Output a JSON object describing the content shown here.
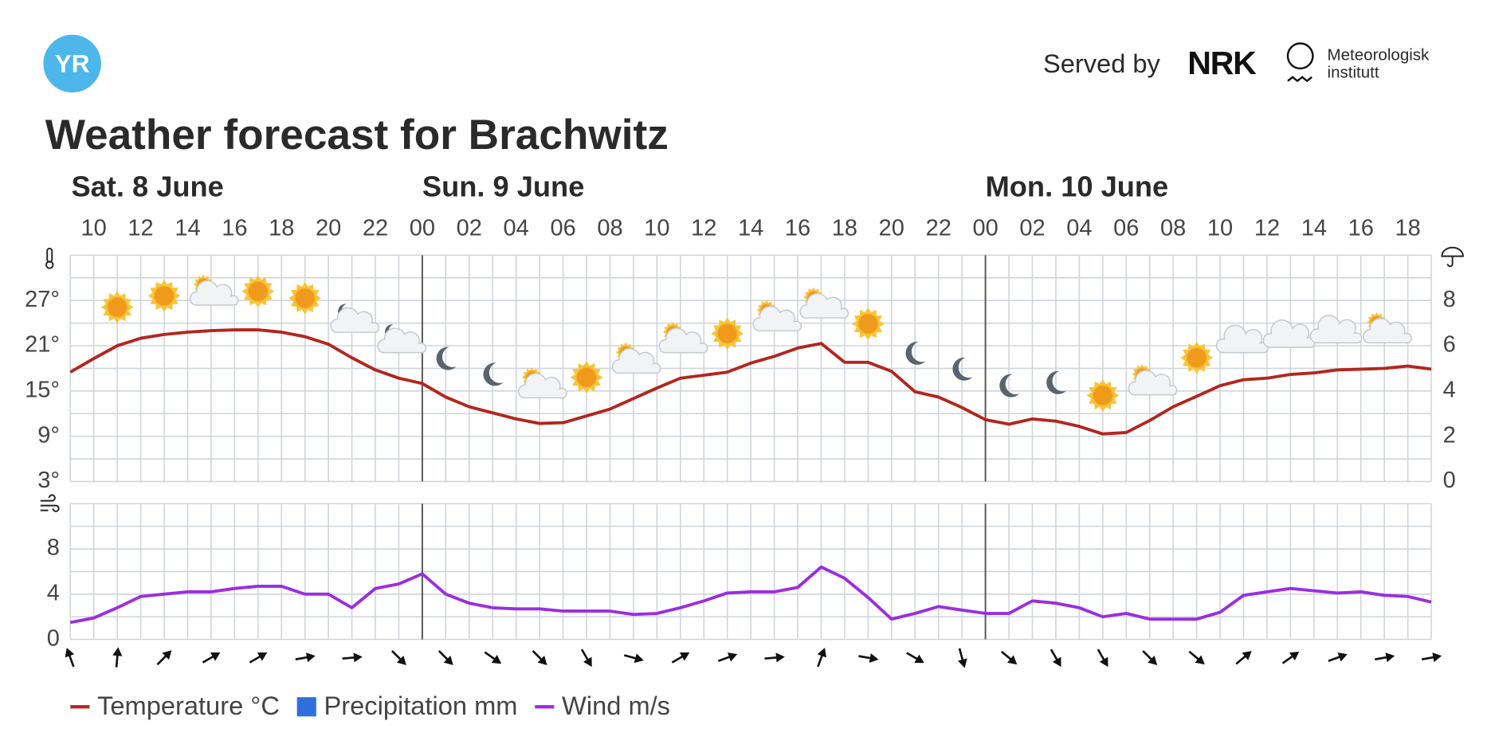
{
  "header": {
    "logo": "YR",
    "served_by": "Served by",
    "nrk": "NRK",
    "met": [
      "Meteorologisk",
      "institutt"
    ]
  },
  "chart_data": [
    {
      "type": "line",
      "title": "Weather forecast for Brachwitz",
      "days": [
        "Sat. 8 June",
        "Sun. 9 June",
        "Mon. 10 June"
      ],
      "categories": [
        null,
        "10",
        null,
        "12",
        null,
        "14",
        null,
        "16",
        null,
        "18",
        null,
        "20",
        null,
        "22",
        null,
        "00",
        null,
        "02",
        null,
        "04",
        null,
        "06",
        null,
        "08",
        null,
        "10",
        null,
        "12",
        null,
        "14",
        null,
        "16",
        null,
        "18",
        null,
        "20",
        null,
        "22",
        null,
        "00",
        null,
        "02",
        null,
        "04",
        null,
        "06",
        null,
        "08",
        null,
        "10",
        null,
        "12",
        null,
        "14",
        null,
        "16",
        null,
        "18",
        null
      ],
      "series": [
        {
          "name": "Temperature °C",
          "color": "#b3261e",
          "values": [
            17.5,
            19.3,
            21.0,
            22.0,
            22.5,
            22.8,
            23.0,
            23.1,
            23.1,
            22.8,
            22.2,
            21.2,
            19.4,
            17.8,
            16.7,
            16.0,
            14.2,
            12.9,
            12.1,
            11.3,
            10.7,
            10.8,
            11.7,
            12.6,
            14.0,
            15.4,
            16.7,
            17.1,
            17.5,
            18.7,
            19.6,
            20.7,
            21.3,
            18.8,
            18.8,
            17.6,
            14.9,
            14.2,
            12.8,
            11.2,
            10.6,
            11.3,
            11.0,
            10.3,
            9.3,
            9.5,
            11.1,
            12.9,
            14.3,
            15.7,
            16.5,
            16.7,
            17.2,
            17.4,
            17.8,
            17.9,
            18.0,
            18.3,
            17.9
          ]
        },
        {
          "name": "Precipitation mm",
          "color": "#2f6fdb",
          "axis": "y2",
          "values": [
            0,
            0,
            0,
            0,
            0,
            0,
            0,
            0,
            0,
            0,
            0,
            0,
            0,
            0,
            0,
            0,
            0,
            0,
            0,
            0,
            0,
            0,
            0,
            0,
            0,
            0,
            0,
            0,
            0,
            0,
            0,
            0,
            0,
            0,
            0,
            0,
            0,
            0,
            0,
            0,
            0,
            0,
            0,
            0,
            0,
            0,
            0,
            0,
            0,
            0,
            0,
            0,
            0,
            0,
            0,
            0,
            0,
            0,
            0
          ]
        }
      ],
      "symbols": [
        null,
        null,
        "sun",
        null,
        "sun",
        null,
        "sun-cloud",
        null,
        "sun",
        null,
        "sun",
        null,
        "moon-cloud",
        null,
        "moon-cloud",
        null,
        "moon",
        null,
        "moon",
        null,
        "sun-cloud",
        null,
        "sun",
        null,
        "sun-cloud",
        null,
        "sun-cloud",
        null,
        "sun",
        null,
        "sun-cloud",
        null,
        "sun-cloud",
        null,
        "sun",
        null,
        "moon",
        null,
        "moon",
        null,
        "moon",
        null,
        "moon",
        null,
        "sun",
        null,
        "sun-cloud",
        null,
        "sun",
        null,
        "cloud",
        null,
        "cloud",
        null,
        "cloud",
        null,
        "sun-cloud",
        null,
        null
      ],
      "ylim": [
        3,
        33
      ],
      "yticks": [
        {
          "value": 3,
          "label": "3°"
        },
        {
          "value": 9,
          "label": "9°"
        },
        {
          "value": 15,
          "label": "15°"
        },
        {
          "value": 21,
          "label": "21°"
        },
        {
          "value": 27,
          "label": "27°"
        }
      ],
      "ygrid": [
        3,
        6,
        9,
        12,
        15,
        18,
        21,
        24,
        27,
        30,
        33
      ],
      "y2lim": [
        0,
        10
      ],
      "y2ticks": [
        0,
        2,
        4,
        6,
        8
      ]
    },
    {
      "type": "line",
      "series": [
        {
          "name": "Wind m/s",
          "color": "#9b2de0",
          "values": [
            1.5,
            1.9,
            2.8,
            3.8,
            4.0,
            4.2,
            4.2,
            4.5,
            4.7,
            4.7,
            4.0,
            4.0,
            2.8,
            4.5,
            4.9,
            5.8,
            4.0,
            3.2,
            2.8,
            2.7,
            2.7,
            2.5,
            2.5,
            2.5,
            2.2,
            2.3,
            2.8,
            3.4,
            4.1,
            4.2,
            4.2,
            4.6,
            6.4,
            5.4,
            3.7,
            1.8,
            2.3,
            2.9,
            2.6,
            2.3,
            2.3,
            3.4,
            3.2,
            2.8,
            2.0,
            2.3,
            1.8,
            1.8,
            1.8,
            2.4,
            3.9,
            4.2,
            4.5,
            4.3,
            4.1,
            4.2,
            3.9,
            3.8,
            3.3
          ]
        }
      ],
      "wind_arrow_heading": [
        340,
        null,
        5,
        null,
        45,
        null,
        60,
        null,
        60,
        null,
        80,
        null,
        85,
        null,
        135,
        null,
        135,
        null,
        125,
        null,
        135,
        null,
        150,
        null,
        105,
        null,
        60,
        null,
        70,
        null,
        85,
        null,
        20,
        null,
        100,
        null,
        120,
        null,
        165,
        null,
        130,
        null,
        150,
        null,
        150,
        null,
        135,
        null,
        130,
        null,
        50,
        null,
        55,
        null,
        70,
        null,
        80,
        null,
        80
      ],
      "ylim": [
        0,
        12
      ],
      "yticks": [
        0,
        4,
        8
      ],
      "ygrid": [
        0,
        2,
        4,
        6,
        8,
        10,
        12
      ]
    }
  ]
}
